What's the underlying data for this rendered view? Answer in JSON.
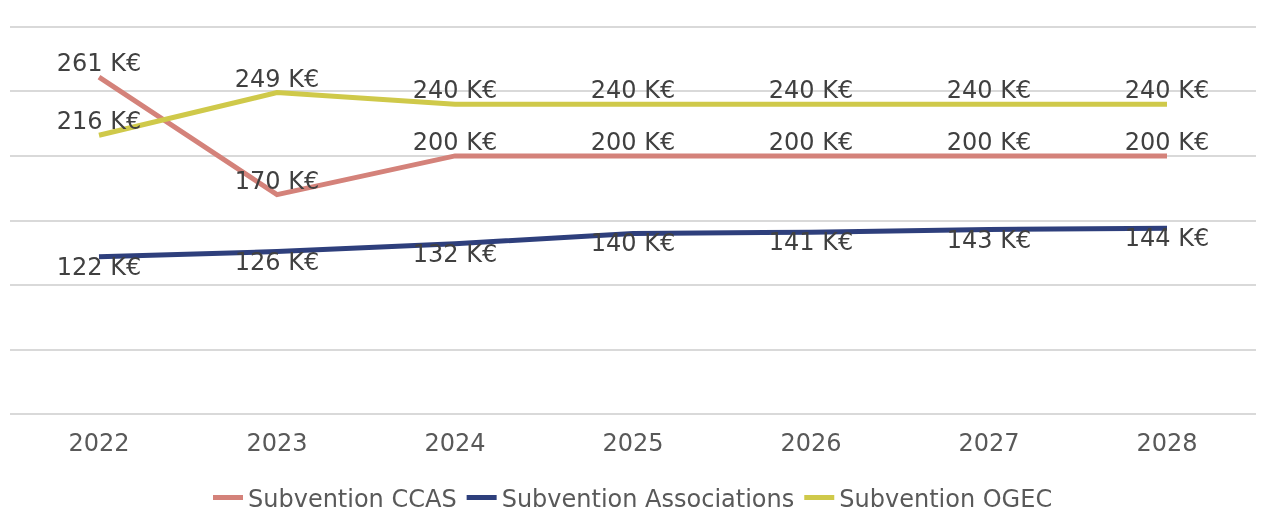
{
  "chart_data": {
    "type": "line",
    "categories": [
      "2022",
      "2023",
      "2024",
      "2025",
      "2026",
      "2027",
      "2028"
    ],
    "series": [
      {
        "name": "Subvention CCAS",
        "color": "#d4827a",
        "values": [
          261,
          170,
          200,
          200,
          200,
          200,
          200
        ],
        "value_labels": [
          "261 K€",
          "170 K€",
          "200 K€",
          "200 K€",
          "200 K€",
          "200 K€",
          "200 K€"
        ]
      },
      {
        "name": "Subvention Associations",
        "color": "#2e3f7c",
        "values": [
          122,
          126,
          132,
          140,
          141,
          143,
          144
        ],
        "value_labels": [
          "122 K€",
          "126 K€",
          "132 K€",
          "140 K€",
          "141 K€",
          "143 K€",
          "144 K€"
        ]
      },
      {
        "name": "Subvention OGEC",
        "color": "#cfc94a",
        "values": [
          216,
          249,
          240,
          240,
          240,
          240,
          240
        ],
        "value_labels": [
          "216 K€",
          "249 K€",
          "240 K€",
          "240 K€",
          "240 K€",
          "240 K€",
          "240 K€"
        ]
      }
    ],
    "yticks": [
      {
        "value": 0,
        "label": null
      },
      {
        "value": 50,
        "label": null
      },
      {
        "value": 100,
        "label": null
      },
      {
        "value": 150,
        "label": null
      },
      {
        "value": 200,
        "label": null
      },
      {
        "value": 250,
        "label": null
      },
      {
        "value": 300,
        "label": null
      }
    ],
    "tick_labels": "x",
    "grid": "y",
    "legend": "bottom",
    "marker": "none",
    "line_style": "solid"
  }
}
